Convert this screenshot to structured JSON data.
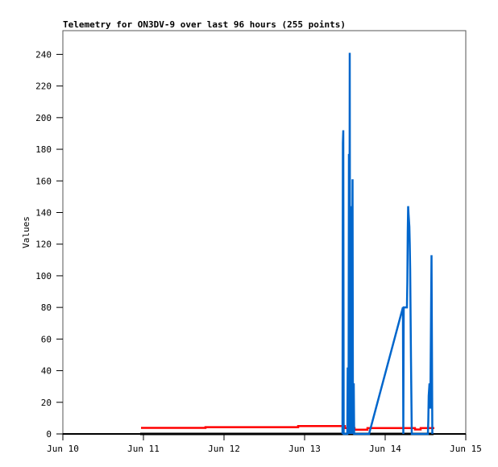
{
  "chart_data": {
    "type": "line",
    "title": "Telemetry for ON3DV-9 over last 96 hours (255 points)",
    "xlabel": "",
    "ylabel": "Values",
    "xlim": [
      "Jun 10",
      "Jun 15"
    ],
    "ylim": [
      0,
      255
    ],
    "x_unit": "day of June",
    "x_ticks": [
      {
        "day": 10,
        "label": "Jun 10"
      },
      {
        "day": 11,
        "label": "Jun 11"
      },
      {
        "day": 12,
        "label": "Jun 12"
      },
      {
        "day": 13,
        "label": "Jun 13"
      },
      {
        "day": 14,
        "label": "Jun 14"
      },
      {
        "day": 15,
        "label": "Jun 15"
      }
    ],
    "y_ticks": [
      0,
      20,
      40,
      60,
      80,
      100,
      120,
      140,
      160,
      180,
      200,
      220,
      240
    ],
    "grid": false,
    "legend": "none",
    "series": [
      {
        "color": "#000000",
        "points": [
          [
            10.96,
            0
          ],
          [
            14.6,
            0
          ]
        ]
      },
      {
        "color": "#ff0000",
        "points": [
          [
            10.97,
            3.8
          ],
          [
            11.77,
            3.8
          ],
          [
            11.77,
            4.3
          ],
          [
            12.92,
            4.3
          ],
          [
            12.92,
            5.0
          ],
          [
            13.5,
            5.0
          ],
          [
            13.5,
            3.7
          ],
          [
            13.62,
            3.7
          ],
          [
            13.62,
            2.7
          ],
          [
            13.78,
            2.7
          ],
          [
            13.78,
            3.7
          ],
          [
            14.37,
            3.7
          ],
          [
            14.37,
            2.8
          ],
          [
            14.44,
            2.8
          ],
          [
            14.44,
            3.7
          ],
          [
            14.61,
            3.7
          ]
        ]
      },
      {
        "color": "#0066cc",
        "points": [
          [
            13.47,
            0
          ],
          [
            13.475,
            184
          ],
          [
            13.48,
            192
          ],
          [
            13.485,
            0
          ],
          [
            13.53,
            0
          ],
          [
            13.535,
            42
          ],
          [
            13.54,
            32
          ],
          [
            13.545,
            0
          ],
          [
            13.55,
            177
          ],
          [
            13.555,
            0
          ],
          [
            13.56,
            241
          ],
          [
            13.565,
            0
          ],
          [
            13.57,
            144
          ],
          [
            13.575,
            0
          ],
          [
            13.58,
            144
          ],
          [
            13.585,
            0
          ],
          [
            13.595,
            161
          ],
          [
            13.6,
            0
          ],
          [
            13.61,
            32
          ],
          [
            13.615,
            0
          ],
          [
            13.8,
            0
          ],
          [
            14.22,
            80
          ],
          [
            14.225,
            0
          ],
          [
            14.23,
            80
          ],
          [
            14.27,
            80
          ],
          [
            14.275,
            96
          ],
          [
            14.28,
            128
          ],
          [
            14.285,
            144
          ],
          [
            14.29,
            139
          ],
          [
            14.3,
            131
          ],
          [
            14.305,
            120
          ],
          [
            14.31,
            104
          ],
          [
            14.32,
            48
          ],
          [
            14.33,
            0
          ],
          [
            14.53,
            0
          ],
          [
            14.535,
            8
          ],
          [
            14.54,
            24
          ],
          [
            14.55,
            32
          ],
          [
            14.555,
            23
          ],
          [
            14.56,
            16
          ],
          [
            14.565,
            48
          ],
          [
            14.575,
            113
          ],
          [
            14.585,
            0
          ]
        ]
      }
    ]
  }
}
